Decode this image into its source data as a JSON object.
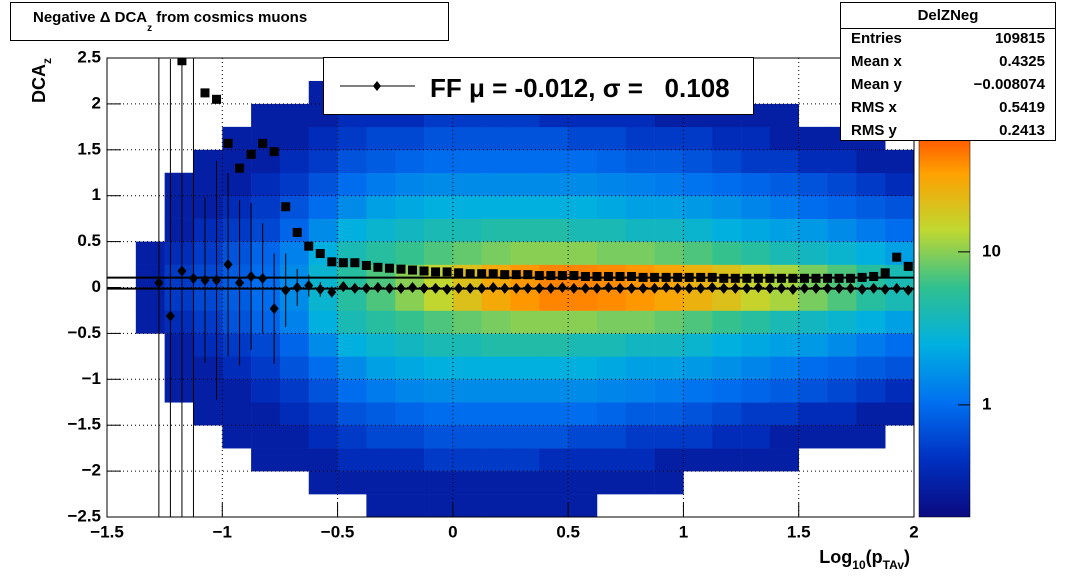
{
  "chart_data": {
    "type": "heatmap",
    "title_parts": [
      {
        "text": "Negative Δ DCA"
      },
      {
        "text": "z",
        "sub": true
      },
      {
        "text": " from cosmics muons"
      }
    ],
    "ylabel_parts": [
      {
        "text": "DCA"
      },
      {
        "text": "z",
        "sub": true
      }
    ],
    "xlabel_parts": [
      {
        "text": "Log"
      },
      {
        "text": "10",
        "sub": true
      },
      {
        "text": "(p"
      },
      {
        "text": "TAv",
        "sub": true
      },
      {
        "text": ")"
      }
    ],
    "xlim": [
      -1.5,
      2
    ],
    "ylim": [
      -2.5,
      2.5
    ],
    "xticks": [
      {
        "value": -1.5,
        "label": "−1.5"
      },
      {
        "value": -1,
        "label": "−1"
      },
      {
        "value": -0.5,
        "label": "−0.5"
      },
      0,
      0.5,
      1,
      1.5,
      2
    ],
    "yticks": [
      {
        "value": -2.5,
        "label": "−2.5"
      },
      {
        "value": -2,
        "label": "−2"
      },
      {
        "value": -1.5,
        "label": "−1.5"
      },
      {
        "value": -1,
        "label": "−1"
      },
      {
        "value": -0.5,
        "label": "−0.5"
      },
      0,
      0.5,
      1,
      1.5,
      2,
      2.5
    ],
    "grid": true,
    "zlog": true,
    "zlim": [
      0.185,
      185
    ],
    "zticks": [
      1,
      10
    ],
    "palette": [
      "#0a0a80",
      "#0030c0",
      "#0070f0",
      "#00b0e0",
      "#30c090",
      "#c0d830",
      "#ffa000",
      "#ff2a00",
      "#c00000"
    ],
    "xbins": [
      -1.5,
      -1.375,
      -1.25,
      -1.125,
      -1,
      -0.875,
      -0.75,
      -0.625,
      -0.5,
      -0.375,
      -0.25,
      -0.125,
      0,
      0.125,
      0.25,
      0.375,
      0.5,
      0.625,
      0.75,
      0.875,
      1,
      1.125,
      1.25,
      1.375,
      1.5,
      1.625,
      1.75,
      1.875,
      2
    ],
    "ybins": [
      -2.5,
      -2.25,
      -2,
      -1.75,
      -1.5,
      -1.25,
      -1,
      -0.75,
      -0.5,
      -0.25,
      0,
      0.25,
      0.5,
      0.75,
      1,
      1.25,
      1.5,
      1.75,
      2,
      2.25,
      2.5
    ],
    "z": [
      [
        null,
        null,
        null,
        null,
        null,
        null,
        null,
        null,
        null,
        0.3,
        0.3,
        0.3,
        0.3,
        0.3,
        0.3,
        0.3,
        0.3,
        null,
        null,
        null,
        null,
        null,
        null,
        null,
        null,
        null,
        null,
        null
      ],
      [
        null,
        null,
        null,
        null,
        null,
        null,
        null,
        0.3,
        0.3,
        0.3,
        0.3,
        0.3,
        0.3,
        0.3,
        0.3,
        0.3,
        0.3,
        0.3,
        0.3,
        0.3,
        null,
        null,
        null,
        null,
        null,
        null,
        null,
        null
      ],
      [
        null,
        null,
        null,
        null,
        null,
        0.3,
        0.3,
        0.3,
        0.4,
        0.4,
        0.4,
        0.5,
        0.5,
        0.5,
        0.5,
        0.4,
        0.4,
        0.4,
        0.4,
        0.3,
        0.3,
        0.3,
        0.3,
        0.3,
        null,
        null,
        null,
        null
      ],
      [
        null,
        null,
        null,
        null,
        0.3,
        0.3,
        0.3,
        0.4,
        0.5,
        0.6,
        0.6,
        0.7,
        0.7,
        0.7,
        0.7,
        0.7,
        0.6,
        0.6,
        0.5,
        0.5,
        0.5,
        0.4,
        0.4,
        0.3,
        0.3,
        0.3,
        0.3,
        null
      ],
      [
        null,
        null,
        null,
        0.3,
        0.3,
        0.3,
        0.4,
        0.5,
        0.7,
        0.8,
        0.9,
        1,
        1,
        1,
        1,
        1,
        1,
        0.9,
        0.8,
        0.8,
        0.7,
        0.6,
        0.5,
        0.5,
        0.4,
        0.4,
        0.3,
        0.3
      ],
      [
        null,
        null,
        0.3,
        0.3,
        0.3,
        0.4,
        0.5,
        0.7,
        1,
        1.2,
        1.4,
        1.5,
        1.5,
        1.5,
        1.5,
        1.5,
        1.5,
        1.4,
        1.3,
        1.2,
        1.1,
        1,
        0.9,
        0.8,
        0.7,
        0.6,
        0.5,
        0.4
      ],
      [
        null,
        null,
        0.3,
        0.3,
        0.4,
        0.5,
        0.7,
        1,
        1.5,
        2,
        2.2,
        2.5,
        2.5,
        2.5,
        2.5,
        2.5,
        2.5,
        2.2,
        2,
        2,
        1.8,
        1.6,
        1.4,
        1.2,
        1,
        0.9,
        0.8,
        0.7
      ],
      [
        null,
        null,
        0.3,
        0.4,
        0.5,
        0.6,
        0.9,
        1.5,
        2.5,
        3,
        3.5,
        4,
        4,
        4.5,
        4.5,
        4.5,
        4,
        4,
        3.5,
        3.5,
        3,
        2.5,
        2.2,
        2,
        1.8,
        1.5,
        1.2,
        1
      ],
      [
        null,
        0.3,
        0.4,
        0.5,
        0.7,
        0.9,
        1.3,
        2.5,
        4,
        5,
        6,
        7,
        8,
        9,
        10,
        10,
        10,
        9,
        9,
        8,
        7,
        6,
        5,
        4,
        3.5,
        3,
        2.5,
        2
      ],
      [
        null,
        0.3,
        0.5,
        0.6,
        0.8,
        1,
        1.5,
        3,
        5,
        7,
        10,
        14,
        20,
        28,
        35,
        40,
        40,
        38,
        35,
        30,
        25,
        20,
        15,
        12,
        9,
        7,
        5,
        4
      ],
      [
        null,
        0.3,
        0.5,
        0.6,
        0.8,
        1,
        1.5,
        3,
        5,
        7,
        10,
        14,
        20,
        28,
        35,
        40,
        40,
        38,
        35,
        30,
        25,
        20,
        15,
        12,
        9,
        7,
        5,
        4
      ],
      [
        null,
        0.3,
        0.4,
        0.5,
        0.7,
        0.9,
        1.3,
        2.5,
        4,
        5,
        6,
        7,
        8,
        9,
        10,
        10,
        10,
        9,
        9,
        8,
        7,
        6,
        5,
        4,
        3.5,
        3,
        2.5,
        2
      ],
      [
        null,
        null,
        0.3,
        0.4,
        0.5,
        0.6,
        0.9,
        1.5,
        2.5,
        3,
        3.5,
        4,
        4,
        4.5,
        4.5,
        4.5,
        4,
        4,
        3.5,
        3.5,
        3,
        2.5,
        2.2,
        2,
        1.8,
        1.5,
        1.2,
        1
      ],
      [
        null,
        null,
        0.3,
        0.3,
        0.4,
        0.5,
        0.7,
        1,
        1.5,
        2,
        2.2,
        2.5,
        2.5,
        2.5,
        2.5,
        2.5,
        2.5,
        2.2,
        2,
        2,
        1.8,
        1.6,
        1.4,
        1.2,
        1,
        0.9,
        0.8,
        0.7
      ],
      [
        null,
        null,
        0.3,
        0.3,
        0.3,
        0.4,
        0.5,
        0.7,
        1,
        1.2,
        1.4,
        1.5,
        1.5,
        1.5,
        1.5,
        1.5,
        1.5,
        1.4,
        1.3,
        1.2,
        1.1,
        1,
        0.9,
        0.8,
        0.7,
        0.6,
        0.5,
        0.4
      ],
      [
        null,
        null,
        null,
        0.3,
        0.3,
        0.3,
        0.4,
        0.5,
        0.7,
        0.8,
        0.9,
        1,
        1,
        1,
        1,
        1,
        1,
        0.9,
        0.8,
        0.8,
        0.7,
        0.6,
        0.5,
        0.5,
        0.4,
        0.4,
        0.3,
        0.3
      ],
      [
        null,
        null,
        null,
        null,
        0.3,
        0.3,
        0.3,
        0.4,
        0.5,
        0.6,
        0.6,
        0.7,
        0.7,
        0.7,
        0.7,
        0.7,
        0.6,
        0.6,
        0.5,
        0.5,
        0.5,
        0.4,
        0.4,
        0.3,
        0.3,
        0.3,
        0.3,
        null
      ],
      [
        null,
        null,
        null,
        null,
        null,
        0.3,
        0.3,
        0.3,
        0.4,
        0.4,
        0.4,
        0.5,
        0.5,
        0.5,
        0.5,
        0.4,
        0.4,
        0.4,
        0.4,
        0.3,
        0.3,
        0.3,
        0.3,
        0.3,
        null,
        null,
        null,
        null
      ],
      [
        null,
        null,
        null,
        null,
        null,
        null,
        null,
        0.3,
        0.3,
        0.3,
        0.3,
        0.3,
        0.3,
        0.3,
        0.3,
        0.3,
        0.3,
        0.3,
        0.3,
        0.3,
        null,
        null,
        null,
        null,
        null,
        null,
        null,
        null
      ],
      [
        null,
        null,
        null,
        null,
        null,
        null,
        null,
        null,
        null,
        0.3,
        0.3,
        0.3,
        0.3,
        0.3,
        0.3,
        0.3,
        0.3,
        null,
        null,
        null,
        null,
        null,
        null,
        null,
        null,
        null,
        null,
        null
      ]
    ],
    "x": [
      -1.275,
      -1.225,
      -1.175,
      -1.125,
      -1.075,
      -1.025,
      -0.975,
      -0.925,
      -0.875,
      -0.825,
      -0.775,
      -0.725,
      -0.675,
      -0.625,
      -0.575,
      -0.525,
      -0.475,
      -0.425,
      -0.375,
      -0.325,
      -0.275,
      -0.225,
      -0.175,
      -0.125,
      -0.075,
      -0.025,
      0.025,
      0.075,
      0.125,
      0.175,
      0.225,
      0.275,
      0.325,
      0.375,
      0.425,
      0.475,
      0.525,
      0.575,
      0.625,
      0.675,
      0.725,
      0.775,
      0.825,
      0.875,
      0.925,
      0.975,
      1.025,
      1.075,
      1.125,
      1.175,
      1.225,
      1.275,
      1.325,
      1.375,
      1.425,
      1.475,
      1.525,
      1.575,
      1.625,
      1.675,
      1.725,
      1.775,
      1.825,
      1.875,
      1.925,
      1.975
    ],
    "series": [
      {
        "name": "FF μ = -0.012, σ =   0.108",
        "marker": "diamond",
        "color": "#000000",
        "values": [
          0.05,
          -0.31,
          0.18,
          0.1,
          0.08,
          0.08,
          0.25,
          0.05,
          0.12,
          0.1,
          -0.23,
          -0.03,
          0.0,
          0.02,
          -0.02,
          -0.05,
          0.01,
          -0.01,
          -0.01,
          0,
          -0.01,
          -0.01,
          0,
          -0.01,
          -0.01,
          -0.02,
          -0.01,
          -0.01,
          -0.01,
          0,
          -0.01,
          -0.01,
          -0.01,
          -0.01,
          -0.01,
          0,
          -0.01,
          -0.01,
          -0.01,
          0,
          -0.01,
          -0.01,
          -0.01,
          -0.01,
          0,
          -0.01,
          -0.01,
          -0.01,
          0,
          -0.01,
          -0.01,
          -0.01,
          0,
          -0.01,
          -0.01,
          -0.02,
          -0.01,
          -0.01,
          -0.01,
          -0.01,
          -0.01,
          -0.02,
          -0.01,
          -0.02,
          -0.01,
          -0.03
        ],
        "errors": [
          2.8,
          2.8,
          2.8,
          2.8,
          0.9,
          1.3,
          1.0,
          0.9,
          0.8,
          0.6,
          0.6,
          0.4,
          0.2,
          0.12,
          0.08,
          0.06,
          0.04,
          0.03,
          0.03,
          0.03,
          0.03,
          0.03,
          0.03,
          0.03,
          0.03,
          0.03,
          0.03,
          0.03,
          0.02,
          0.02,
          0.02,
          0.02,
          0.02,
          0.02,
          0.02,
          0.02,
          0.02,
          0.02,
          0.02,
          0.02,
          0.02,
          0.02,
          0.02,
          0.02,
          0.02,
          0.02,
          0.02,
          0.02,
          0.02,
          0.02,
          0.02,
          0.02,
          0.02,
          0.02,
          0.02,
          0.02,
          0.02,
          0.02,
          0.03,
          0.03,
          0.03,
          0.03,
          0.04,
          0.04,
          0.04,
          0.04
        ]
      },
      {
        "marker": "square",
        "color": "#000000",
        "values": [
          null,
          null,
          2.47,
          null,
          2.12,
          2.05,
          1.57,
          1.3,
          1.45,
          1.57,
          1.48,
          0.88,
          0.6,
          0.45,
          0.37,
          0.28,
          0.27,
          0.27,
          0.24,
          0.22,
          0.21,
          0.2,
          0.19,
          0.18,
          0.17,
          0.17,
          0.16,
          0.15,
          0.15,
          0.15,
          0.14,
          0.14,
          0.14,
          0.13,
          0.13,
          0.13,
          0.13,
          0.12,
          0.12,
          0.12,
          0.12,
          0.12,
          0.11,
          0.11,
          0.11,
          0.11,
          0.11,
          0.11,
          0.11,
          0.1,
          0.1,
          0.1,
          0.1,
          0.1,
          0.1,
          0.1,
          0.1,
          0.1,
          0.1,
          0.1,
          0.1,
          0.11,
          0.12,
          0.16,
          0.33,
          0.23
        ]
      }
    ],
    "hlines": [
      -0.012,
      0.108
    ],
    "legend": "top",
    "stats": {
      "title": "DelZNeg",
      "rows": [
        [
          "Entries",
          "109815"
        ],
        [
          "Mean x",
          "0.4325"
        ],
        [
          "Mean y",
          "−0.008074"
        ],
        [
          "RMS x",
          "0.5419"
        ],
        [
          "RMS y",
          "0.2413"
        ]
      ]
    }
  }
}
